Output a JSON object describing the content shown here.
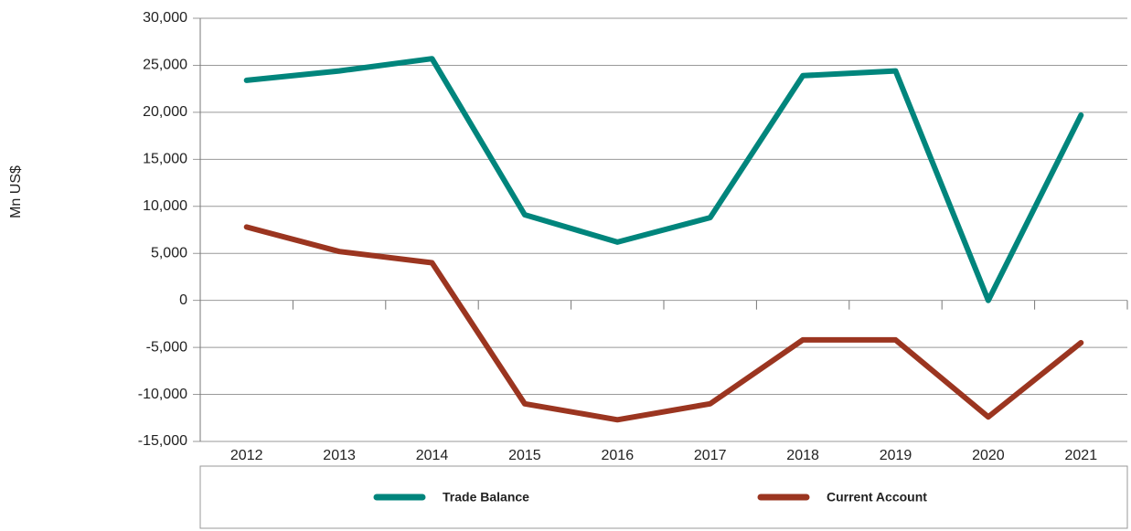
{
  "chart_data": {
    "type": "line",
    "y_label": "Mn US$",
    "categories": [
      "2012",
      "2013",
      "2014",
      "2015",
      "2016",
      "2017",
      "2018",
      "2019",
      "2020",
      "2021"
    ],
    "series": [
      {
        "name": "Trade Balance",
        "color": "#00857c",
        "values": [
          23400,
          24400,
          25700,
          9100,
          6200,
          8800,
          23900,
          24400,
          0,
          19700
        ]
      },
      {
        "name": "Current Account",
        "color": "#9b3520",
        "values": [
          7800,
          5200,
          4000,
          -11000,
          -12700,
          -11000,
          -4200,
          -4200,
          -12400,
          -4500
        ]
      }
    ],
    "ylim": [
      -15000,
      30000
    ],
    "yticks": [
      {
        "value": -15000,
        "label": "-15,000"
      },
      {
        "value": -10000,
        "label": "-10,000"
      },
      {
        "value": -5000,
        "label": "-5,000"
      },
      0,
      {
        "value": 5000,
        "label": "5,000"
      },
      {
        "value": 10000,
        "label": "10,000"
      },
      {
        "value": 15000,
        "label": "15,000"
      },
      {
        "value": 20000,
        "label": "20,000"
      },
      {
        "value": 25000,
        "label": "25,000"
      },
      {
        "value": 30000,
        "label": "30,000"
      }
    ],
    "grid": true,
    "legend": "bottom"
  }
}
